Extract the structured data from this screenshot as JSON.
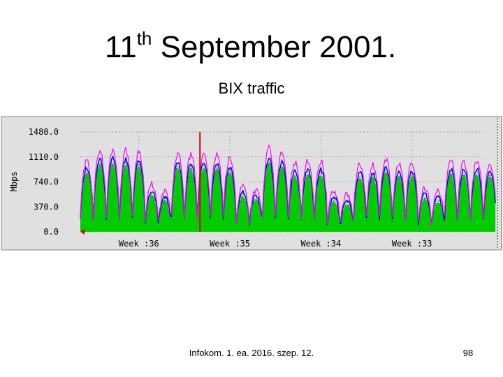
{
  "slide": {
    "title_main": "11",
    "title_sup": "th",
    "title_rest": " September 2001.",
    "subtitle": "BIX traffic",
    "footer": "Infokom. 1. ea. 2016. szep. 12.",
    "page_number": "98"
  },
  "chart_data": {
    "type": "area",
    "ylabel": "Mbps",
    "yticks": [
      "1480.0",
      "1110.0",
      "740.0",
      "370.0",
      "0.0"
    ],
    "ytick_values": [
      1480,
      1110,
      740,
      370,
      0
    ],
    "ylim": [
      0,
      1480
    ],
    "xticks": [
      "Week :36",
      "Week :35",
      "Week :34",
      "Week :33"
    ],
    "xtick_days": [
      4.5,
      11.5,
      18.5,
      25.5
    ],
    "xlim_days": [
      0,
      31
    ],
    "event_marker_day": 9.2,
    "grid": true,
    "colors": {
      "background": "#e0e0e0",
      "green_area": "#00cc00",
      "blue_line": "#0000ff",
      "magenta_line": "#ff00ff",
      "dark_line": "#006600",
      "event_line": "#dd0000"
    },
    "series": [
      {
        "values": [
          1050,
          1210,
          1220,
          1210,
          1200,
          700,
          600,
          1160,
          1140,
          1170,
          1150,
          1090,
          690,
          620,
          1240,
          1170,
          1030,
          1060,
          1050,
          600,
          560,
          1000,
          990,
          1080,
          1000,
          1020,
          650,
          600,
          1050,
          1040,
          1050,
          1010,
          1010
        ]
      },
      {
        "values": [
          950,
          1080,
          1090,
          1080,
          1060,
          600,
          520,
          1030,
          1010,
          1040,
          1020,
          960,
          600,
          540,
          1090,
          1030,
          900,
          930,
          920,
          510,
          480,
          880,
          870,
          960,
          880,
          900,
          560,
          510,
          930,
          920,
          930,
          890,
          890
        ]
      },
      {
        "values": [
          880,
          1000,
          1010,
          1000,
          990,
          540,
          460,
          960,
          940,
          970,
          950,
          890,
          540,
          480,
          1010,
          960,
          830,
          860,
          850,
          450,
          420,
          810,
          800,
          890,
          810,
          830,
          500,
          450,
          860,
          850,
          860,
          820,
          820
        ]
      }
    ]
  }
}
